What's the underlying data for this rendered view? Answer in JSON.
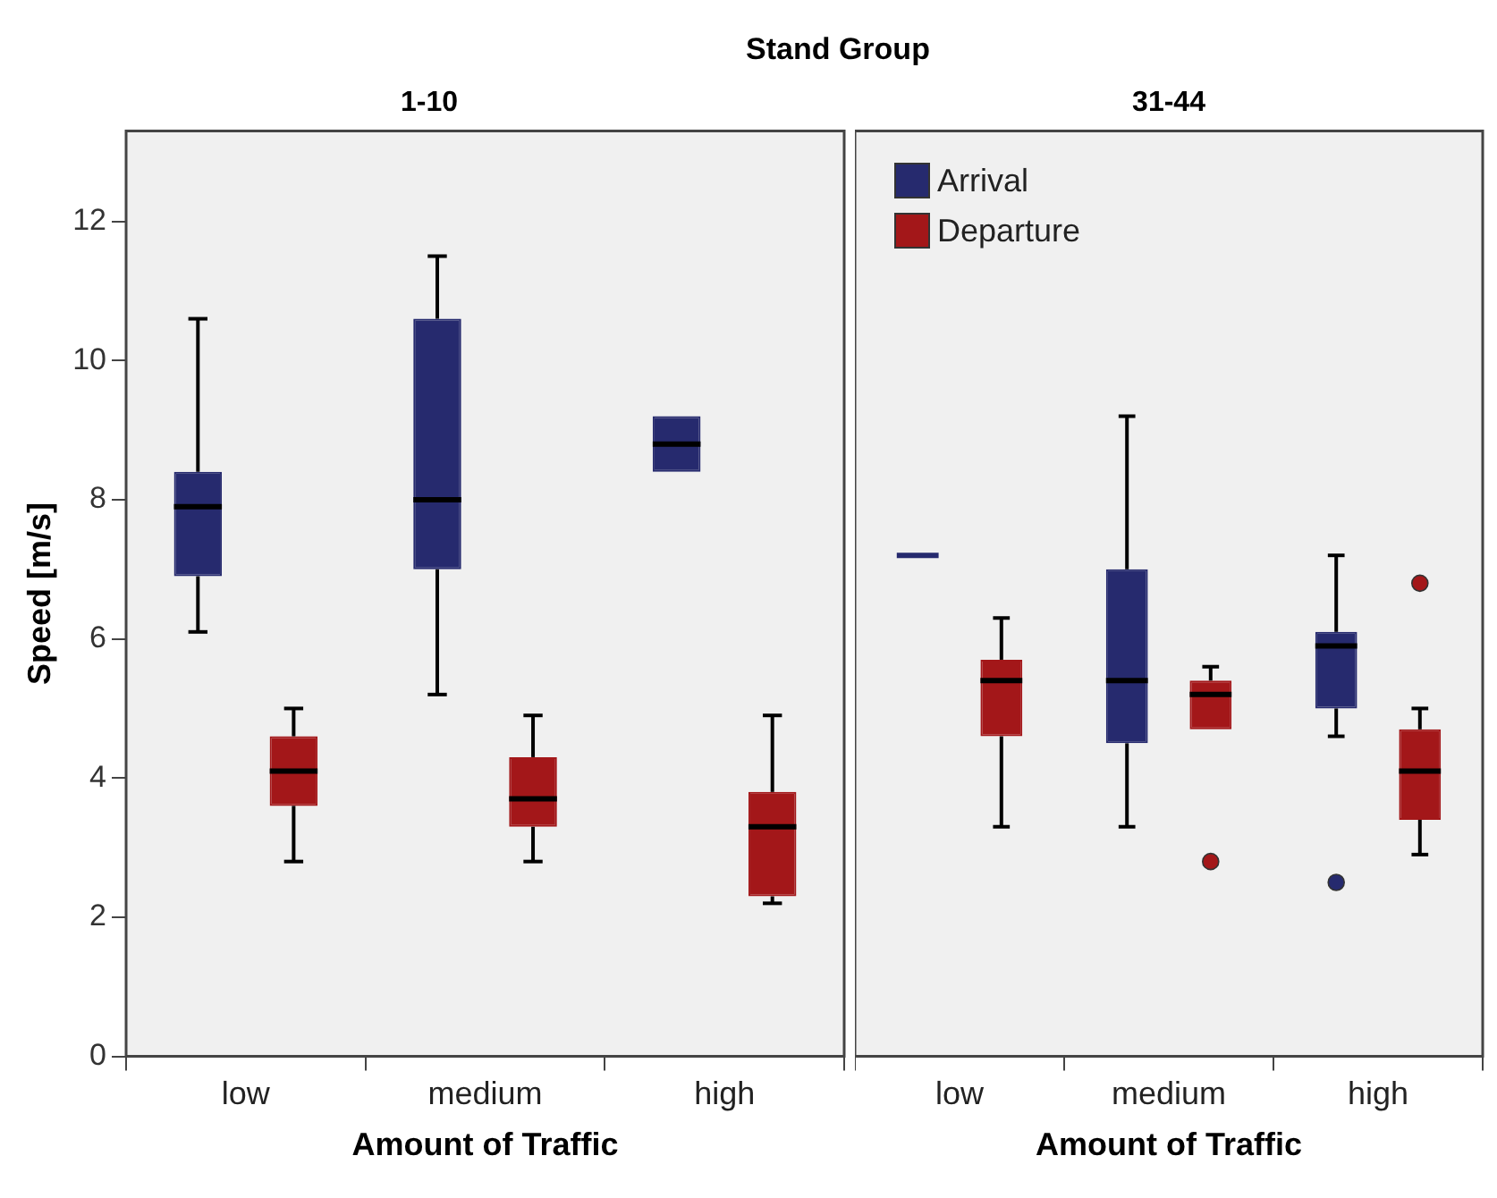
{
  "chart_data": [
    {
      "type": "box",
      "title": "Stand Group",
      "subtitle": "1-10",
      "xlabel": "Amount of Traffic",
      "ylabel": "Speed [m/s]",
      "categories": [
        "low",
        "medium",
        "high"
      ],
      "ylim": [
        0,
        13.3
      ],
      "yticks": [
        0,
        2,
        4,
        6,
        8,
        10,
        12
      ],
      "grid": false,
      "series": [
        {
          "color": "#262a6e",
          "boxes": [
            {
              "low": 6.1,
              "q1": 6.9,
              "median": 7.9,
              "q3": 8.4,
              "high": 10.6
            },
            {
              "low": 5.2,
              "q1": 7.0,
              "median": 8.0,
              "q3": 10.6,
              "high": 11.5
            },
            {
              "low": 8.4,
              "q1": 8.4,
              "median": 8.8,
              "q3": 9.2,
              "high": 9.2
            }
          ]
        },
        {
          "color": "#a31719",
          "boxes": [
            {
              "low": 2.8,
              "q1": 3.6,
              "median": 4.1,
              "q3": 4.6,
              "high": 5.0
            },
            {
              "low": 2.8,
              "q1": 3.3,
              "median": 3.7,
              "q3": 4.3,
              "high": 4.9
            },
            {
              "low": 2.2,
              "q1": 2.3,
              "median": 3.3,
              "q3": 3.8,
              "high": 4.9
            }
          ]
        }
      ]
    },
    {
      "type": "box",
      "subtitle": "31-44",
      "xlabel": "Amount of Traffic",
      "categories": [
        "low",
        "medium",
        "high"
      ],
      "ylim": [
        0,
        13.3
      ],
      "yticks": [
        0,
        2,
        4,
        6,
        8,
        10,
        12
      ],
      "grid": false,
      "tick_labels": "x",
      "legend": "top left",
      "series": [
        {
          "name": "Arrival",
          "color": "#262a6e",
          "boxes": [
            {
              "low": 7.2,
              "q1": 7.2,
              "median": 7.2,
              "q3": 7.2,
              "high": 7.2
            },
            {
              "low": 3.3,
              "q1": 4.5,
              "median": 5.4,
              "q3": 7.0,
              "high": 9.2
            },
            {
              "low": 4.6,
              "q1": 5.0,
              "median": 5.9,
              "q3": 6.1,
              "high": 7.2,
              "outliers": [
                2.5
              ]
            }
          ]
        },
        {
          "name": "Departure",
          "color": "#a31719",
          "boxes": [
            {
              "low": 3.3,
              "q1": 4.6,
              "median": 5.4,
              "q3": 5.7,
              "high": 6.3
            },
            {
              "low": 4.7,
              "q1": 4.7,
              "median": 5.2,
              "q3": 5.4,
              "high": 5.6,
              "outliers": [
                2.8
              ]
            },
            {
              "low": 2.9,
              "q1": 3.4,
              "median": 4.1,
              "q3": 4.7,
              "high": 5.0,
              "outliers": [
                6.8
              ]
            }
          ]
        }
      ]
    }
  ]
}
